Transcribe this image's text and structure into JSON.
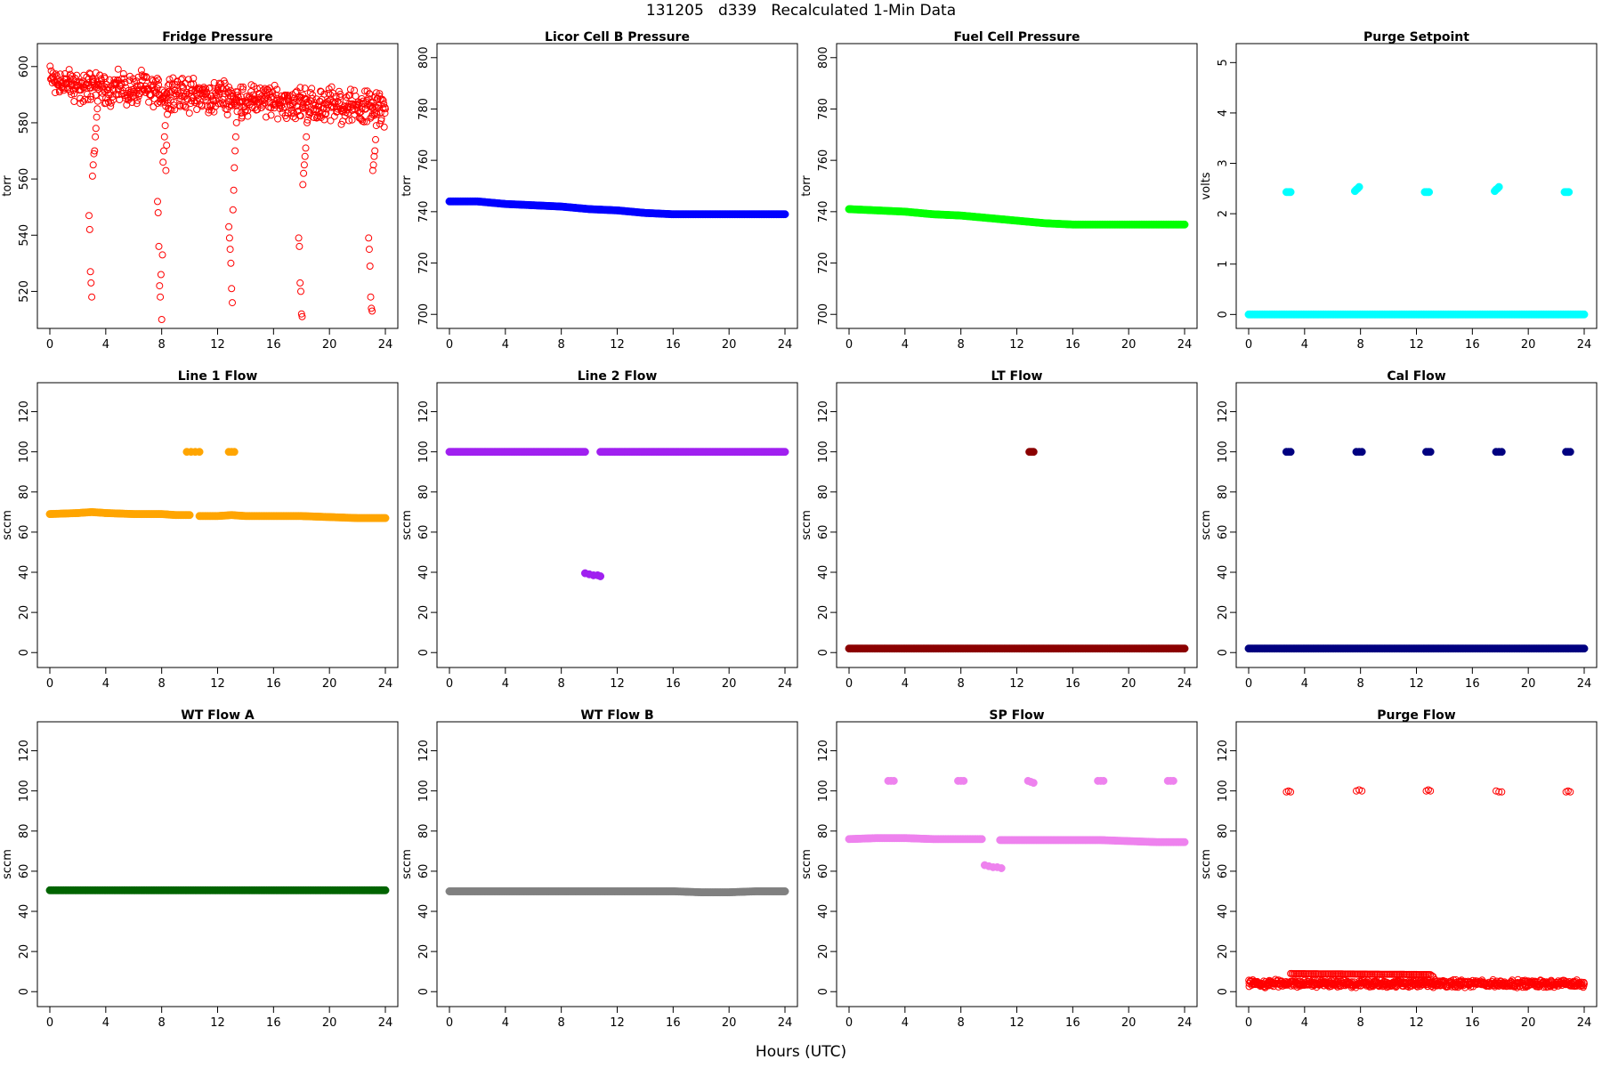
{
  "figure": {
    "title": "131205   d339   Recalculated 1-Min Data",
    "xcaption": "Hours (UTC)"
  },
  "chart_data": [
    {
      "type": "scatter",
      "title": "Fridge Pressure",
      "ylabel": "torr",
      "color": "#ff0000",
      "marker": "open",
      "xlim": [
        0,
        24
      ],
      "xticks": [
        0,
        4,
        8,
        12,
        16,
        20,
        24
      ],
      "ylim": [
        510,
        605
      ],
      "yticks": [
        520,
        540,
        560,
        580,
        600
      ],
      "series": [
        {
          "x": [
            0,
            0.5,
            1,
            1.5,
            2,
            2.5,
            3,
            3.5,
            4,
            4.5,
            5,
            5.5,
            6,
            6.5,
            7,
            7.5,
            8,
            8.5,
            9,
            9.5,
            10,
            10.5,
            11,
            11.5,
            12,
            12.5,
            13,
            13.5,
            14,
            14.5,
            15,
            15.5,
            16,
            16.5,
            17,
            17.5,
            18,
            18.5,
            19,
            19.5,
            20,
            20.5,
            21,
            21.5,
            22,
            22.5,
            23,
            23.5,
            24
          ],
          "y": [
            596,
            595,
            594,
            593,
            593,
            592,
            594,
            593,
            592,
            592,
            593,
            592,
            591,
            592,
            592,
            591,
            590,
            591,
            591,
            590,
            590,
            590,
            589,
            589,
            590,
            589,
            589,
            588,
            588,
            588,
            588,
            588,
            587,
            587,
            588,
            587,
            587,
            587,
            586,
            586,
            587,
            586,
            586,
            586,
            586,
            586,
            586,
            585,
            585
          ],
          "spread": 7
        },
        {
          "x": [
            2.8,
            2.85,
            2.9,
            2.95,
            3.0,
            3.05,
            3.1,
            3.15,
            3.2,
            3.25,
            3.3,
            3.35,
            3.4
          ],
          "y": [
            547,
            542,
            527,
            523,
            518,
            561,
            565,
            569,
            570,
            575,
            578,
            582,
            585
          ]
        },
        {
          "x": [
            7.7,
            7.75,
            7.8,
            7.85,
            7.9,
            7.95,
            8.0,
            8.05,
            8.1,
            8.15,
            8.2,
            8.25,
            8.3,
            8.35,
            8.4,
            8.45,
            8.5
          ],
          "y": [
            552,
            548,
            536,
            522,
            518,
            526,
            510,
            533,
            566,
            570,
            575,
            579,
            563,
            572,
            583,
            587,
            585
          ]
        },
        {
          "x": [
            12.8,
            12.85,
            12.9,
            12.95,
            13.0,
            13.05,
            13.1,
            13.15,
            13.2,
            13.25,
            13.3,
            13.35,
            13.4
          ],
          "y": [
            543,
            539,
            535,
            530,
            521,
            516,
            549,
            556,
            564,
            570,
            575,
            580,
            584
          ]
        },
        {
          "x": [
            17.8,
            17.85,
            17.9,
            17.95,
            18.0,
            18.05,
            18.1,
            18.15,
            18.2,
            18.25,
            18.3,
            18.35,
            18.4,
            18.5
          ],
          "y": [
            539,
            536,
            523,
            520,
            512,
            511,
            558,
            562,
            565,
            568,
            571,
            575,
            580,
            584
          ]
        },
        {
          "x": [
            22.8,
            22.85,
            22.9,
            22.95,
            23.0,
            23.05,
            23.1,
            23.15,
            23.2,
            23.25,
            23.3,
            23.35,
            23.4
          ],
          "y": [
            539,
            535,
            529,
            518,
            514,
            513,
            563,
            565,
            568,
            570,
            574,
            579,
            583
          ]
        }
      ]
    },
    {
      "type": "scatter",
      "title": "Licor Cell B Pressure",
      "ylabel": "torr",
      "color": "#0000ff",
      "marker": "filled",
      "xlim": [
        0,
        24
      ],
      "xticks": [
        0,
        4,
        8,
        12,
        16,
        20,
        24
      ],
      "ylim": [
        698,
        802
      ],
      "yticks": [
        700,
        720,
        740,
        760,
        780,
        800
      ],
      "series": [
        {
          "x": [
            0,
            2,
            4,
            6,
            8,
            10,
            12,
            14,
            16,
            18,
            20,
            22,
            24
          ],
          "y": [
            744,
            744,
            743,
            742.5,
            742,
            741,
            740.5,
            739.5,
            739,
            739,
            739,
            739,
            739
          ]
        }
      ]
    },
    {
      "type": "scatter",
      "title": "Fuel Cell Pressure",
      "ylabel": "torr",
      "color": "#00ff00",
      "marker": "filled",
      "xlim": [
        0,
        24
      ],
      "xticks": [
        0,
        4,
        8,
        12,
        16,
        20,
        24
      ],
      "ylim": [
        698,
        802
      ],
      "yticks": [
        700,
        720,
        740,
        760,
        780,
        800
      ],
      "series": [
        {
          "x": [
            0,
            2,
            4,
            6,
            8,
            10,
            12,
            14,
            16,
            18,
            20,
            22,
            24
          ],
          "y": [
            741,
            740.5,
            740,
            739,
            738.5,
            737.5,
            736.5,
            735.5,
            735,
            735,
            735,
            735,
            735
          ]
        }
      ]
    },
    {
      "type": "scatter",
      "title": "Purge Setpoint",
      "ylabel": "volts",
      "color": "#00ffff",
      "marker": "filled",
      "xlim": [
        0,
        24
      ],
      "xticks": [
        0,
        4,
        8,
        12,
        16,
        20,
        24
      ],
      "ylim": [
        -0.1,
        5.2
      ],
      "yticks": [
        0,
        1,
        2,
        3,
        4,
        5
      ],
      "series": [
        {
          "x": [
            0,
            24
          ],
          "y": [
            0,
            0
          ]
        },
        {
          "x": [
            2.7,
            2.8,
            2.9,
            3.0
          ],
          "y": [
            2.43,
            2.43,
            2.43,
            2.43
          ]
        },
        {
          "x": [
            7.6,
            7.7,
            7.8,
            7.9
          ],
          "y": [
            2.45,
            2.48,
            2.5,
            2.53
          ]
        },
        {
          "x": [
            12.6,
            12.7,
            12.8,
            12.9
          ],
          "y": [
            2.43,
            2.43,
            2.43,
            2.43
          ]
        },
        {
          "x": [
            17.6,
            17.7,
            17.8,
            17.9
          ],
          "y": [
            2.45,
            2.48,
            2.5,
            2.53
          ]
        },
        {
          "x": [
            22.6,
            22.7,
            22.8,
            22.9
          ],
          "y": [
            2.43,
            2.43,
            2.43,
            2.43
          ]
        }
      ]
    },
    {
      "type": "scatter",
      "title": "Line 1 Flow",
      "ylabel": "sccm",
      "color": "#ffa500",
      "marker": "filled",
      "xlim": [
        0,
        24
      ],
      "xticks": [
        0,
        4,
        8,
        12,
        16,
        20,
        24
      ],
      "ylim": [
        -3,
        130
      ],
      "yticks": [
        0,
        20,
        40,
        60,
        80,
        100,
        120
      ],
      "series": [
        {
          "x": [
            0,
            2,
            3,
            4,
            6,
            8,
            9,
            10
          ],
          "y": [
            69,
            69.5,
            70,
            69.5,
            69,
            69,
            68.5,
            68.5
          ]
        },
        {
          "x": [
            10.7,
            12,
            13,
            14,
            16,
            18,
            20,
            22,
            24
          ],
          "y": [
            68,
            68,
            68.5,
            68,
            68,
            68,
            67.5,
            67,
            67
          ]
        },
        {
          "x": [
            9.8,
            10.1,
            10.4,
            10.7
          ],
          "y": [
            100,
            100,
            100,
            100
          ]
        },
        {
          "x": [
            12.8,
            13.0,
            13.2
          ],
          "y": [
            100,
            100,
            100
          ]
        }
      ]
    },
    {
      "type": "scatter",
      "title": "Line 2 Flow",
      "ylabel": "sccm",
      "color": "#a020f0",
      "marker": "filled",
      "xlim": [
        0,
        24
      ],
      "xticks": [
        0,
        4,
        8,
        12,
        16,
        20,
        24
      ],
      "ylim": [
        -3,
        130
      ],
      "yticks": [
        0,
        20,
        40,
        60,
        80,
        100,
        120
      ],
      "series": [
        {
          "x": [
            0,
            9.7
          ],
          "y": [
            100,
            100
          ]
        },
        {
          "x": [
            10.8,
            24
          ],
          "y": [
            100,
            100
          ]
        },
        {
          "x": [
            9.7,
            10.0,
            10.3,
            10.6,
            10.8
          ],
          "y": [
            39.5,
            39,
            38.5,
            38.5,
            38
          ]
        }
      ]
    },
    {
      "type": "scatter",
      "title": "LT Flow",
      "ylabel": "sccm",
      "color": "#8b0000",
      "marker": "filled",
      "xlim": [
        0,
        24
      ],
      "xticks": [
        0,
        4,
        8,
        12,
        16,
        20,
        24
      ],
      "ylim": [
        -3,
        130
      ],
      "yticks": [
        0,
        20,
        40,
        60,
        80,
        100,
        120
      ],
      "series": [
        {
          "x": [
            0,
            24
          ],
          "y": [
            2,
            2
          ]
        },
        {
          "x": [
            12.9,
            13.0,
            13.1,
            13.2
          ],
          "y": [
            100,
            100,
            100,
            100
          ]
        }
      ]
    },
    {
      "type": "scatter",
      "title": "Cal Flow",
      "ylabel": "sccm",
      "color": "#000080",
      "marker": "filled",
      "xlim": [
        0,
        24
      ],
      "xticks": [
        0,
        4,
        8,
        12,
        16,
        20,
        24
      ],
      "ylim": [
        -3,
        130
      ],
      "yticks": [
        0,
        20,
        40,
        60,
        80,
        100,
        120
      ],
      "series": [
        {
          "x": [
            0,
            24
          ],
          "y": [
            2,
            2
          ]
        },
        {
          "x": [
            2.7,
            2.85,
            3.0
          ],
          "y": [
            100,
            100,
            100
          ]
        },
        {
          "x": [
            7.7,
            7.9,
            8.1
          ],
          "y": [
            100,
            100,
            100
          ]
        },
        {
          "x": [
            12.7,
            12.85,
            13.0
          ],
          "y": [
            100,
            100,
            100
          ]
        },
        {
          "x": [
            17.7,
            17.9,
            18.1
          ],
          "y": [
            100,
            100,
            100
          ]
        },
        {
          "x": [
            22.7,
            22.85,
            23.0
          ],
          "y": [
            100,
            100,
            100
          ]
        }
      ]
    },
    {
      "type": "scatter",
      "title": "WT Flow A",
      "ylabel": "sccm",
      "color": "#006400",
      "marker": "filled",
      "xlim": [
        0,
        24
      ],
      "xticks": [
        0,
        4,
        8,
        12,
        16,
        20,
        24
      ],
      "ylim": [
        -3,
        130
      ],
      "yticks": [
        0,
        20,
        40,
        60,
        80,
        100,
        120
      ],
      "series": [
        {
          "x": [
            0,
            24
          ],
          "y": [
            50.5,
            50.5
          ]
        }
      ]
    },
    {
      "type": "scatter",
      "title": "WT Flow B",
      "ylabel": "sccm",
      "color": "#808080",
      "marker": "filled",
      "xlim": [
        0,
        24
      ],
      "xticks": [
        0,
        4,
        8,
        12,
        16,
        20,
        24
      ],
      "ylim": [
        -3,
        130
      ],
      "yticks": [
        0,
        20,
        40,
        60,
        80,
        100,
        120
      ],
      "series": [
        {
          "x": [
            0,
            4,
            8,
            12,
            16,
            18,
            20,
            22,
            24
          ],
          "y": [
            50,
            50,
            50,
            50,
            50,
            49.5,
            49.5,
            50,
            50
          ]
        }
      ]
    },
    {
      "type": "scatter",
      "title": "SP Flow",
      "ylabel": "sccm",
      "color": "#ee82ee",
      "marker": "filled",
      "xlim": [
        0,
        24
      ],
      "xticks": [
        0,
        4,
        8,
        12,
        16,
        20,
        24
      ],
      "ylim": [
        -3,
        130
      ],
      "yticks": [
        0,
        20,
        40,
        60,
        80,
        100,
        120
      ],
      "series": [
        {
          "x": [
            0,
            2,
            4,
            6,
            8,
            9.5
          ],
          "y": [
            76,
            76.5,
            76.5,
            76,
            76,
            76
          ]
        },
        {
          "x": [
            10.8,
            12,
            14,
            16,
            18,
            20,
            22,
            24
          ],
          "y": [
            75.5,
            75.5,
            75.5,
            75.5,
            75.5,
            75,
            74.5,
            74.5
          ]
        },
        {
          "x": [
            9.7,
            10.0,
            10.3,
            10.6,
            10.9
          ],
          "y": [
            63,
            62.5,
            62,
            62,
            61.5
          ]
        },
        {
          "x": [
            2.8,
            3.0,
            3.2
          ],
          "y": [
            105,
            105,
            105
          ]
        },
        {
          "x": [
            7.8,
            8.0,
            8.2
          ],
          "y": [
            105,
            105,
            105
          ]
        },
        {
          "x": [
            12.8,
            13.0,
            13.2
          ],
          "y": [
            105,
            104.5,
            104
          ]
        },
        {
          "x": [
            17.8,
            18.0,
            18.2
          ],
          "y": [
            105,
            105,
            105
          ]
        },
        {
          "x": [
            22.8,
            23.0,
            23.2
          ],
          "y": [
            105,
            105,
            105
          ]
        }
      ]
    },
    {
      "type": "scatter",
      "title": "Purge Flow",
      "ylabel": "sccm",
      "color": "#ff0000",
      "marker": "open",
      "xlim": [
        0,
        24
      ],
      "xticks": [
        0,
        4,
        8,
        12,
        16,
        20,
        24
      ],
      "ylim": [
        -3,
        130
      ],
      "yticks": [
        0,
        20,
        40,
        60,
        80,
        100,
        120
      ],
      "series": [
        {
          "x": [
            0,
            4,
            8,
            12,
            16,
            20,
            24
          ],
          "y": [
            4,
            4,
            4,
            4,
            4,
            4,
            4
          ],
          "spread": 2.2
        },
        {
          "x": [
            3.0,
            13.0,
            13.1,
            13.2
          ],
          "y": [
            9,
            8.5,
            8,
            7.5
          ]
        },
        {
          "x": [
            2.7,
            2.85,
            3.0
          ],
          "y": [
            99.5,
            100,
            99.5
          ]
        },
        {
          "x": [
            7.7,
            7.9,
            8.1
          ],
          "y": [
            100,
            100.5,
            100
          ]
        },
        {
          "x": [
            12.7,
            12.85,
            13.0
          ],
          "y": [
            100,
            100.5,
            100
          ]
        },
        {
          "x": [
            17.7,
            17.9,
            18.1
          ],
          "y": [
            100,
            99.5,
            99.5
          ]
        },
        {
          "x": [
            22.7,
            22.85,
            23.0
          ],
          "y": [
            99.5,
            100,
            99.5
          ]
        }
      ]
    }
  ]
}
